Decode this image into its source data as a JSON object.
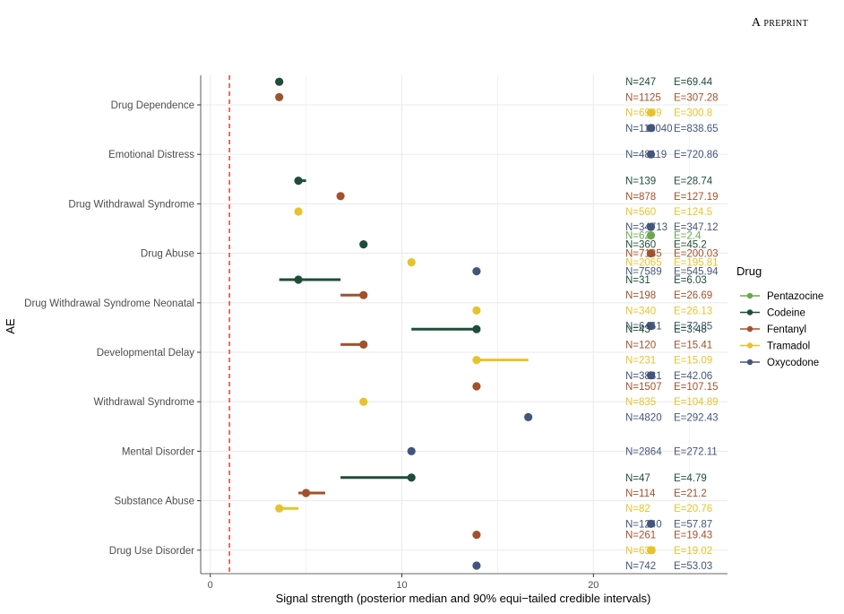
{
  "header": {
    "preprint_label": "A preprint"
  },
  "colors": {
    "Pentazocine": "#6aa84f",
    "Codeine": "#1f4d3a",
    "Fentanyl": "#a0522d",
    "Tramadol": "#e6c32e",
    "Oxycodone": "#44557a",
    "reference_line": "#e03030",
    "grid": "#ebebeb"
  },
  "chart_data": {
    "type": "scatter",
    "title": "",
    "xlabel": "Signal strength (posterior median and 90% equi−tailed credible intervals)",
    "ylabel": "AE",
    "xlim": [
      -0.5,
      27
    ],
    "x_ticks": [
      0,
      10,
      20
    ],
    "reference_x": 1,
    "grid": true,
    "legend": {
      "title": "Drug",
      "placement": "right",
      "entries": [
        "Pentazocine",
        "Codeine",
        "Fentanyl",
        "Tramadol",
        "Oxycodone"
      ]
    },
    "categories": [
      "Drug Dependence",
      "Emotional Distress",
      "Drug Withdrawal Syndrome",
      "Drug Abuse",
      "Drug Withdrawal Syndrome Neonatal",
      "Developmental Delay",
      "Withdrawal Syndrome",
      "Mental Disorder",
      "Substance Abuse",
      "Drug Use Disorder"
    ],
    "rows": [
      {
        "category": "Drug Dependence",
        "entries": [
          {
            "drug": "Codeine",
            "median": 3.6,
            "lo": 3.4,
            "hi": 3.8,
            "n_label": "N=247",
            "e_label": "E=69.44"
          },
          {
            "drug": "Fentanyl",
            "median": 3.6,
            "lo": 3.6,
            "hi": 3.6,
            "n_label": "N=1125",
            "e_label": "E=307.28"
          },
          {
            "drug": "Tramadol",
            "median": 23.0,
            "lo": 23.0,
            "hi": 23.0,
            "n_label": "N=6909",
            "e_label": "E=300.8"
          },
          {
            "drug": "Oxycodone",
            "median": 23.0,
            "lo": 23.0,
            "hi": 23.0,
            "n_label": "N=118040",
            "e_label": "E=838.65"
          }
        ]
      },
      {
        "category": "Emotional Distress",
        "entries": [
          {
            "drug": "Oxycodone",
            "median": 23.0,
            "lo": 23.0,
            "hi": 23.0,
            "n_label": "N=48119",
            "e_label": "E=720.86"
          }
        ]
      },
      {
        "category": "Drug Withdrawal Syndrome",
        "entries": [
          {
            "drug": "Codeine",
            "median": 4.6,
            "lo": 4.6,
            "hi": 5.0,
            "n_label": "N=139",
            "e_label": "E=28.74"
          },
          {
            "drug": "Fentanyl",
            "median": 6.8,
            "lo": 6.8,
            "hi": 6.8,
            "n_label": "N=878",
            "e_label": "E=127.19"
          },
          {
            "drug": "Tramadol",
            "median": 4.6,
            "lo": 4.6,
            "hi": 4.6,
            "n_label": "N=560",
            "e_label": "E=124.5"
          },
          {
            "drug": "Oxycodone",
            "median": 23.0,
            "lo": 23.0,
            "hi": 23.0,
            "n_label": "N=34713",
            "e_label": "E=347.12"
          }
        ]
      },
      {
        "category": "Drug Abuse",
        "entries": [
          {
            "drug": "Pentazocine",
            "median": 23.0,
            "lo": 23.0,
            "hi": 23.0,
            "n_label": "N=62",
            "e_label": "E=2.4"
          },
          {
            "drug": "Codeine",
            "median": 8.0,
            "lo": 8.0,
            "hi": 8.0,
            "n_label": "N=360",
            "e_label": "E=45.2"
          },
          {
            "drug": "Fentanyl",
            "median": 23.0,
            "lo": 23.0,
            "hi": 23.0,
            "n_label": "N=7185",
            "e_label": "E=200.03"
          },
          {
            "drug": "Tramadol",
            "median": 10.5,
            "lo": 10.5,
            "hi": 10.5,
            "n_label": "N=2065",
            "e_label": "E=195.81"
          },
          {
            "drug": "Oxycodone",
            "median": 13.9,
            "lo": 13.9,
            "hi": 13.9,
            "n_label": "N=7589",
            "e_label": "E=545.94"
          }
        ]
      },
      {
        "category": "Drug Withdrawal Syndrome Neonatal",
        "entries": [
          {
            "drug": "Codeine",
            "median": 4.6,
            "lo": 3.6,
            "hi": 6.8,
            "n_label": "N=31",
            "e_label": "E=6.03"
          },
          {
            "drug": "Fentanyl",
            "median": 8.0,
            "lo": 6.8,
            "hi": 8.0,
            "n_label": "N=198",
            "e_label": "E=26.69"
          },
          {
            "drug": "Tramadol",
            "median": 13.9,
            "lo": 13.9,
            "hi": 13.9,
            "n_label": "N=340",
            "e_label": "E=26.13"
          },
          {
            "drug": "Oxycodone",
            "median": 23.0,
            "lo": 23.0,
            "hi": 23.0,
            "n_label": "N=6461",
            "e_label": "E=72.85"
          }
        ]
      },
      {
        "category": "Developmental Delay",
        "entries": [
          {
            "drug": "Codeine",
            "median": 13.9,
            "lo": 10.5,
            "hi": 13.9,
            "n_label": "N=43",
            "e_label": "E=3.48"
          },
          {
            "drug": "Fentanyl",
            "median": 8.0,
            "lo": 6.8,
            "hi": 8.0,
            "n_label": "N=120",
            "e_label": "E=15.41"
          },
          {
            "drug": "Tramadol",
            "median": 13.9,
            "lo": 13.9,
            "hi": 16.6,
            "n_label": "N=231",
            "e_label": "E=15.09"
          },
          {
            "drug": "Oxycodone",
            "median": 23.0,
            "lo": 23.0,
            "hi": 23.0,
            "n_label": "N=3831",
            "e_label": "E=42.06"
          }
        ]
      },
      {
        "category": "Withdrawal Syndrome",
        "entries": [
          {
            "drug": "Fentanyl",
            "median": 13.9,
            "lo": 13.9,
            "hi": 13.9,
            "n_label": "N=1507",
            "e_label": "E=107.15"
          },
          {
            "drug": "Tramadol",
            "median": 8.0,
            "lo": 8.0,
            "hi": 8.0,
            "n_label": "N=835",
            "e_label": "E=104.89"
          },
          {
            "drug": "Oxycodone",
            "median": 16.6,
            "lo": 16.6,
            "hi": 16.6,
            "n_label": "N=4820",
            "e_label": "E=292.43"
          }
        ]
      },
      {
        "category": "Mental Disorder",
        "entries": [
          {
            "drug": "Oxycodone",
            "median": 10.5,
            "lo": 10.5,
            "hi": 10.5,
            "n_label": "N=2864",
            "e_label": "E=272.11"
          }
        ]
      },
      {
        "category": "Substance Abuse",
        "entries": [
          {
            "drug": "Codeine",
            "median": 10.5,
            "lo": 6.8,
            "hi": 10.5,
            "n_label": "N=47",
            "e_label": "E=4.79"
          },
          {
            "drug": "Fentanyl",
            "median": 5.0,
            "lo": 4.6,
            "hi": 6.0,
            "n_label": "N=114",
            "e_label": "E=21.2"
          },
          {
            "drug": "Tramadol",
            "median": 3.6,
            "lo": 3.4,
            "hi": 4.6,
            "n_label": "N=82",
            "e_label": "E=20.76"
          },
          {
            "drug": "Oxycodone",
            "median": 23.0,
            "lo": 23.0,
            "hi": 23.0,
            "n_label": "N=1240",
            "e_label": "E=57.87"
          }
        ]
      },
      {
        "category": "Drug Use Disorder",
        "entries": [
          {
            "drug": "Fentanyl",
            "median": 13.9,
            "lo": 13.9,
            "hi": 13.9,
            "n_label": "N=261",
            "e_label": "E=19.43"
          },
          {
            "drug": "Tramadol",
            "median": 23.0,
            "lo": 23.0,
            "hi": 23.0,
            "n_label": "N=630",
            "e_label": "E=19.02"
          },
          {
            "drug": "Oxycodone",
            "median": 13.9,
            "lo": 13.9,
            "hi": 13.9,
            "n_label": "N=742",
            "e_label": "E=53.03"
          }
        ]
      }
    ]
  }
}
